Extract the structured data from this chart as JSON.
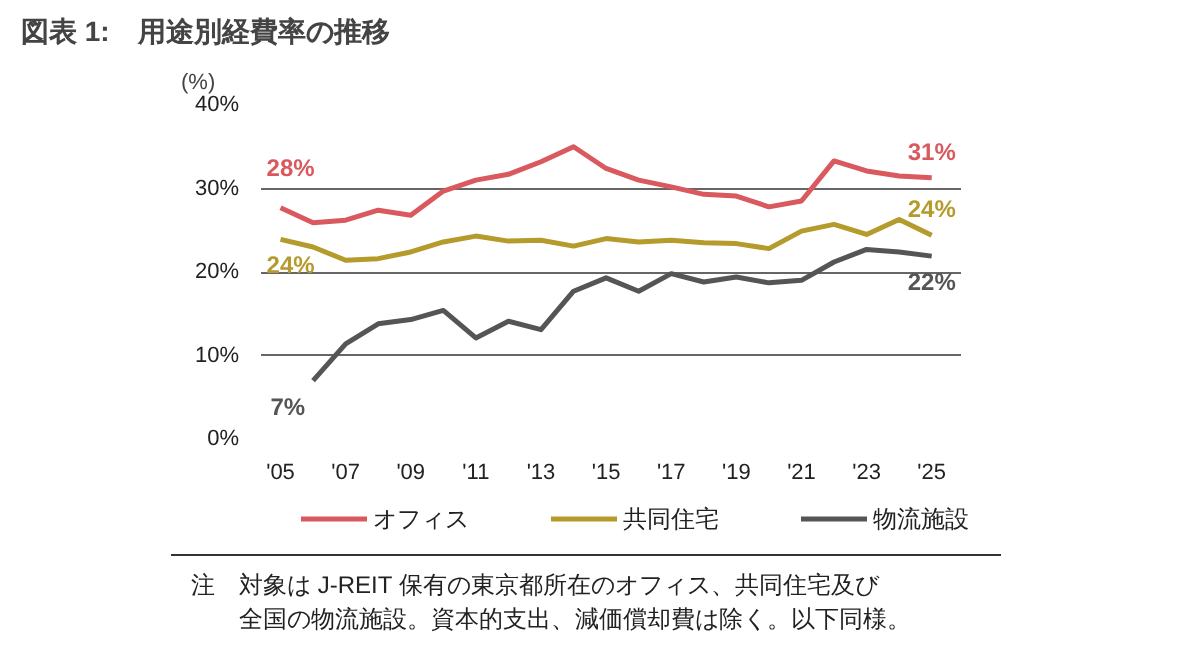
{
  "chart_data": {
    "type": "line",
    "title": "図表 1:　用途別経費率の推移",
    "ylabel": "(%)",
    "x": [
      2005,
      2006,
      2007,
      2008,
      2009,
      2010,
      2011,
      2012,
      2013,
      2014,
      2015,
      2016,
      2017,
      2018,
      2019,
      2020,
      2021,
      2022,
      2023,
      2024,
      2025
    ],
    "xlim": [
      2004.4,
      2025.9
    ],
    "xticks": [
      {
        "value": 2005,
        "label": "'05"
      },
      {
        "value": 2007,
        "label": "'07"
      },
      {
        "value": 2009,
        "label": "'09"
      },
      {
        "value": 2011,
        "label": "'11"
      },
      {
        "value": 2013,
        "label": "'13"
      },
      {
        "value": 2015,
        "label": "'15"
      },
      {
        "value": 2017,
        "label": "'17"
      },
      {
        "value": 2019,
        "label": "'19"
      },
      {
        "value": 2021,
        "label": "'21"
      },
      {
        "value": 2023,
        "label": "'23"
      },
      {
        "value": 2025,
        "label": "'25"
      }
    ],
    "ylim": [
      0,
      40
    ],
    "yticks": [
      {
        "value": 0,
        "label": "0%"
      },
      {
        "value": 10,
        "label": "10%"
      },
      {
        "value": 20,
        "label": "20%"
      },
      {
        "value": 30,
        "label": "30%"
      },
      {
        "value": 40,
        "label": "40%"
      }
    ],
    "series": [
      {
        "name": "オフィス",
        "color": "#d9595f",
        "values": [
          27.7,
          25.9,
          26.2,
          27.4,
          26.8,
          29.7,
          31.0,
          31.7,
          33.2,
          35.0,
          32.4,
          31.0,
          30.2,
          29.3,
          29.1,
          27.8,
          28.5,
          33.3,
          32.1,
          31.5,
          31.3
        ],
        "value_labels": [
          "28%",
          null,
          null,
          null,
          null,
          null,
          null,
          null,
          null,
          null,
          null,
          null,
          null,
          null,
          null,
          null,
          null,
          null,
          null,
          null,
          "31%"
        ]
      },
      {
        "name": "共同住宅",
        "color": "#b59a2c",
        "values": [
          23.9,
          23.0,
          21.4,
          21.6,
          22.4,
          23.6,
          24.3,
          23.7,
          23.8,
          23.1,
          24.0,
          23.6,
          23.8,
          23.5,
          23.4,
          22.8,
          24.9,
          25.7,
          24.5,
          26.3,
          24.4
        ],
        "value_labels": [
          "24%",
          null,
          null,
          null,
          null,
          null,
          null,
          null,
          null,
          null,
          null,
          null,
          null,
          null,
          null,
          null,
          null,
          null,
          null,
          null,
          "24%"
        ]
      },
      {
        "name": "物流施設",
        "color": "#555555",
        "values": [
          null,
          7.0,
          11.4,
          13.8,
          14.3,
          15.4,
          12.1,
          14.1,
          13.1,
          17.7,
          19.3,
          17.7,
          19.8,
          18.8,
          19.4,
          18.7,
          19.0,
          21.2,
          22.7,
          22.4,
          21.9
        ],
        "value_labels": [
          null,
          "7%",
          null,
          null,
          null,
          null,
          null,
          null,
          null,
          null,
          null,
          null,
          null,
          null,
          null,
          null,
          null,
          null,
          null,
          null,
          "22%"
        ]
      }
    ],
    "grid": "y",
    "legend": "bottom",
    "marker": "none",
    "line_style": "solid",
    "annotations": [
      "注　対象は J-REIT 保有の東京都所在のオフィス、共同住宅及び",
      "全国の物流施設。資本的支出、減価償却費は除く。以下同様。"
    ]
  }
}
